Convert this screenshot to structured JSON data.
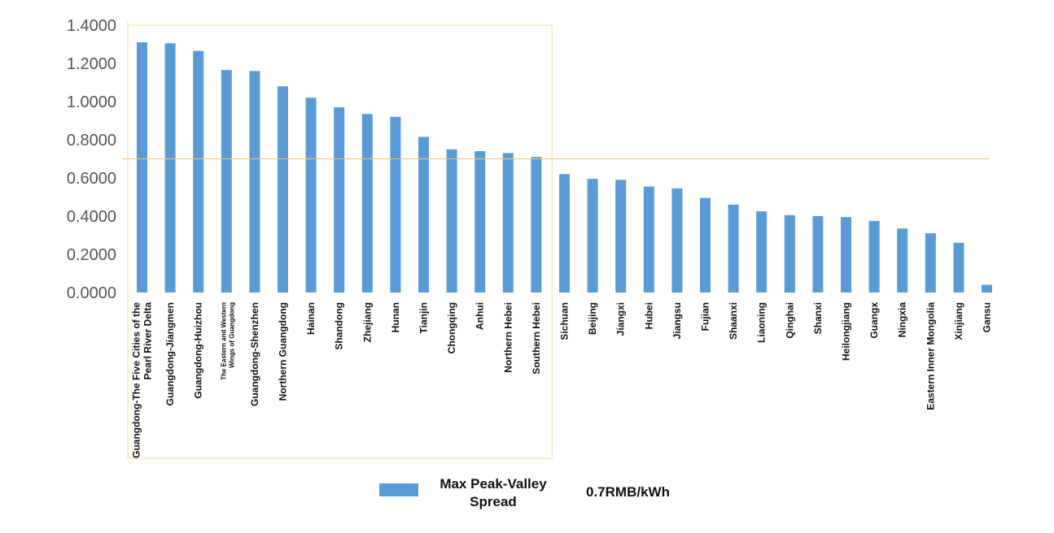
{
  "chart_data": {
    "type": "bar",
    "categories": [
      "Guangdong-The Five Cities of the Pearl River Delta",
      "Guangdong-Jiangmen",
      "Guangdong-Huizhou",
      "The Eastern and Western Wings of Guangdong",
      "Guangdong-Shenzhen",
      "Northern Guangdong",
      "Hainan",
      "Shandong",
      "Zhejiang",
      "Hunan",
      "Tianjin",
      "Chongqing",
      "Anhui",
      "Northern Hebei",
      "Southern Hebei",
      "Sichuan",
      "Beijing",
      "Jiangxi",
      "Hubei",
      "Jiangsu",
      "Fujian",
      "Shaanxi",
      "Liaoning",
      "Qinghai",
      "Shanxi",
      "Heilongjiang",
      "Guangx",
      "Ningxia",
      "Eastern Inner Mongolia",
      "Xinjiang",
      "Gansu"
    ],
    "series": [
      {
        "name": "Max Peak-Valley Spread",
        "color": "#5b9bd5",
        "values": [
          1.31,
          1.305,
          1.265,
          1.165,
          1.16,
          1.08,
          1.02,
          0.97,
          0.935,
          0.92,
          0.815,
          0.75,
          0.74,
          0.73,
          0.71,
          0.62,
          0.595,
          0.59,
          0.555,
          0.545,
          0.495,
          0.46,
          0.425,
          0.405,
          0.4,
          0.395,
          0.375,
          0.335,
          0.31,
          0.26,
          0.04
        ]
      }
    ],
    "y_ticks": [
      "0.0000",
      "0.2000",
      "0.4000",
      "0.6000",
      "0.8000",
      "1.0000",
      "1.2000",
      "1.4000"
    ],
    "ylim": [
      0,
      1.4
    ],
    "reference_line": {
      "value": 0.7,
      "label": "0.7RMB/kWh",
      "color": "#f2c46d"
    },
    "highlight_box": {
      "from_category": 0,
      "to_category": 14,
      "color": "#f5dc9a"
    },
    "axis_color": "#f0d7a0",
    "grid": false,
    "legend": {
      "placement": "bottom-center"
    }
  }
}
